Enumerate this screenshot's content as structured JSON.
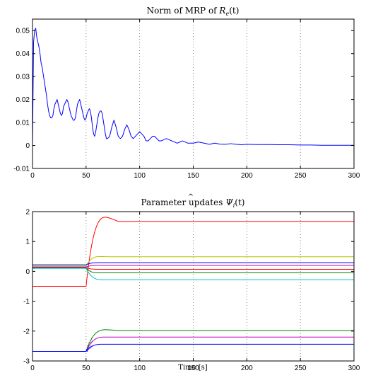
{
  "chart_data": [
    {
      "type": "line",
      "title_prefix": "Norm of MRP of ",
      "title_math": "R",
      "title_sub": "e",
      "title_suffix": "(t)",
      "xlabel": "",
      "ylabel": "",
      "xlim": [
        0,
        300
      ],
      "ylim": [
        -0.01,
        0.055
      ],
      "xticks": [
        0,
        50,
        100,
        150,
        200,
        250,
        300
      ],
      "yticks": [
        -0.01,
        0,
        0.01,
        0.02,
        0.03,
        0.04,
        0.05
      ],
      "ytick_labels": [
        "-0.01",
        "0",
        "0.01",
        "0.02",
        "0.03",
        "0.04",
        "0.05"
      ],
      "grid": "vertical dotted",
      "series": [
        {
          "color": "#0000ff",
          "x": [
            0,
            1,
            2,
            3,
            4,
            5,
            6,
            7,
            8,
            9,
            10,
            11,
            12,
            13,
            14,
            15,
            16,
            17,
            18,
            19,
            20,
            21,
            22,
            23,
            24,
            25,
            26,
            27,
            28,
            29,
            30,
            31,
            32,
            33,
            34,
            35,
            36,
            37,
            38,
            39,
            40,
            41,
            42,
            43,
            44,
            45,
            46,
            47,
            48,
            49,
            50,
            51,
            52,
            53,
            54,
            55,
            56,
            57,
            58,
            59,
            60,
            61,
            62,
            63,
            64,
            65,
            66,
            67,
            68,
            69,
            70,
            72,
            74,
            76,
            78,
            80,
            82,
            84,
            86,
            88,
            90,
            92,
            94,
            96,
            98,
            100,
            102,
            104,
            106,
            108,
            110,
            112,
            114,
            116,
            118,
            120,
            125,
            130,
            135,
            140,
            145,
            150,
            155,
            160,
            165,
            170,
            175,
            180,
            185,
            190,
            195,
            200,
            210,
            220,
            230,
            240,
            250,
            260,
            270,
            280,
            290,
            300
          ],
          "y": [
            0.0,
            0.045,
            0.05,
            0.051,
            0.047,
            0.045,
            0.043,
            0.04,
            0.036,
            0.034,
            0.031,
            0.028,
            0.025,
            0.022,
            0.018,
            0.015,
            0.013,
            0.012,
            0.012,
            0.013,
            0.016,
            0.018,
            0.019,
            0.02,
            0.018,
            0.016,
            0.014,
            0.013,
            0.014,
            0.017,
            0.018,
            0.019,
            0.02,
            0.019,
            0.017,
            0.015,
            0.013,
            0.012,
            0.011,
            0.011,
            0.012,
            0.015,
            0.018,
            0.019,
            0.02,
            0.018,
            0.016,
            0.014,
            0.012,
            0.011,
            0.012,
            0.014,
            0.015,
            0.016,
            0.015,
            0.012,
            0.008,
            0.005,
            0.004,
            0.006,
            0.009,
            0.012,
            0.014,
            0.015,
            0.015,
            0.014,
            0.011,
            0.008,
            0.005,
            0.003,
            0.003,
            0.004,
            0.008,
            0.011,
            0.008,
            0.004,
            0.003,
            0.004,
            0.007,
            0.009,
            0.007,
            0.004,
            0.003,
            0.004,
            0.005,
            0.006,
            0.005,
            0.004,
            0.002,
            0.002,
            0.003,
            0.004,
            0.004,
            0.003,
            0.002,
            0.002,
            0.003,
            0.002,
            0.001,
            0.002,
            0.001,
            0.001,
            0.0015,
            0.001,
            0.0005,
            0.001,
            0.0006,
            0.0005,
            0.0008,
            0.0005,
            0.0003,
            0.0005,
            0.0004,
            0.0004,
            0.0003,
            0.0003,
            0.0002,
            0.0002,
            0.0001,
            0.0001,
            0.0001,
            0.0001
          ]
        }
      ]
    },
    {
      "type": "line",
      "title_prefix": "Parameter updates ",
      "title_math": "Ψ",
      "title_sub": "i",
      "title_suffix": "(t)",
      "xlabel": "Time [s]",
      "ylabel": "",
      "xlim": [
        0,
        300
      ],
      "ylim": [
        -3,
        2
      ],
      "xticks": [
        0,
        50,
        100,
        150,
        200,
        250,
        300
      ],
      "yticks": [
        -3,
        -2,
        -1,
        0,
        1,
        2
      ],
      "ytick_labels": [
        "-3",
        "-2",
        "-1",
        "0",
        "1",
        "2"
      ],
      "grid": "vertical dotted",
      "switch_time": 50,
      "series": [
        {
          "color": "#ff0000",
          "initial": -0.5,
          "final": 1.67,
          "settle": 20,
          "overshoot": 0.07
        },
        {
          "color": "#bfbf00",
          "initial": 0.18,
          "final": 0.49,
          "settle": 14,
          "overshoot": 0.02
        },
        {
          "color": "#0000ff",
          "initial": 0.22,
          "final": 0.29,
          "settle": 12,
          "overshoot": 0.0
        },
        {
          "color": "#bf00bf",
          "initial": 0.15,
          "final": 0.2,
          "settle": 12,
          "overshoot": 0.0
        },
        {
          "color": "#ff0000",
          "initial": 0.13,
          "final": 0.07,
          "settle": 12,
          "overshoot": 0.0
        },
        {
          "color": "#008000",
          "initial": 0.12,
          "final": -0.05,
          "settle": 12,
          "overshoot": 0.0
        },
        {
          "color": "#00bfbf",
          "initial": 0.1,
          "final": -0.28,
          "settle": 16,
          "overshoot": 0.0
        },
        {
          "color": "#008000",
          "initial": -2.68,
          "final": -1.98,
          "settle": 20,
          "overshoot": 0.04
        },
        {
          "color": "#bf00bf",
          "initial": -2.68,
          "final": -2.2,
          "settle": 18,
          "overshoot": 0.0
        },
        {
          "color": "#0000ff",
          "initial": -2.68,
          "final": -2.44,
          "settle": 16,
          "overshoot": 0.0
        }
      ]
    }
  ]
}
